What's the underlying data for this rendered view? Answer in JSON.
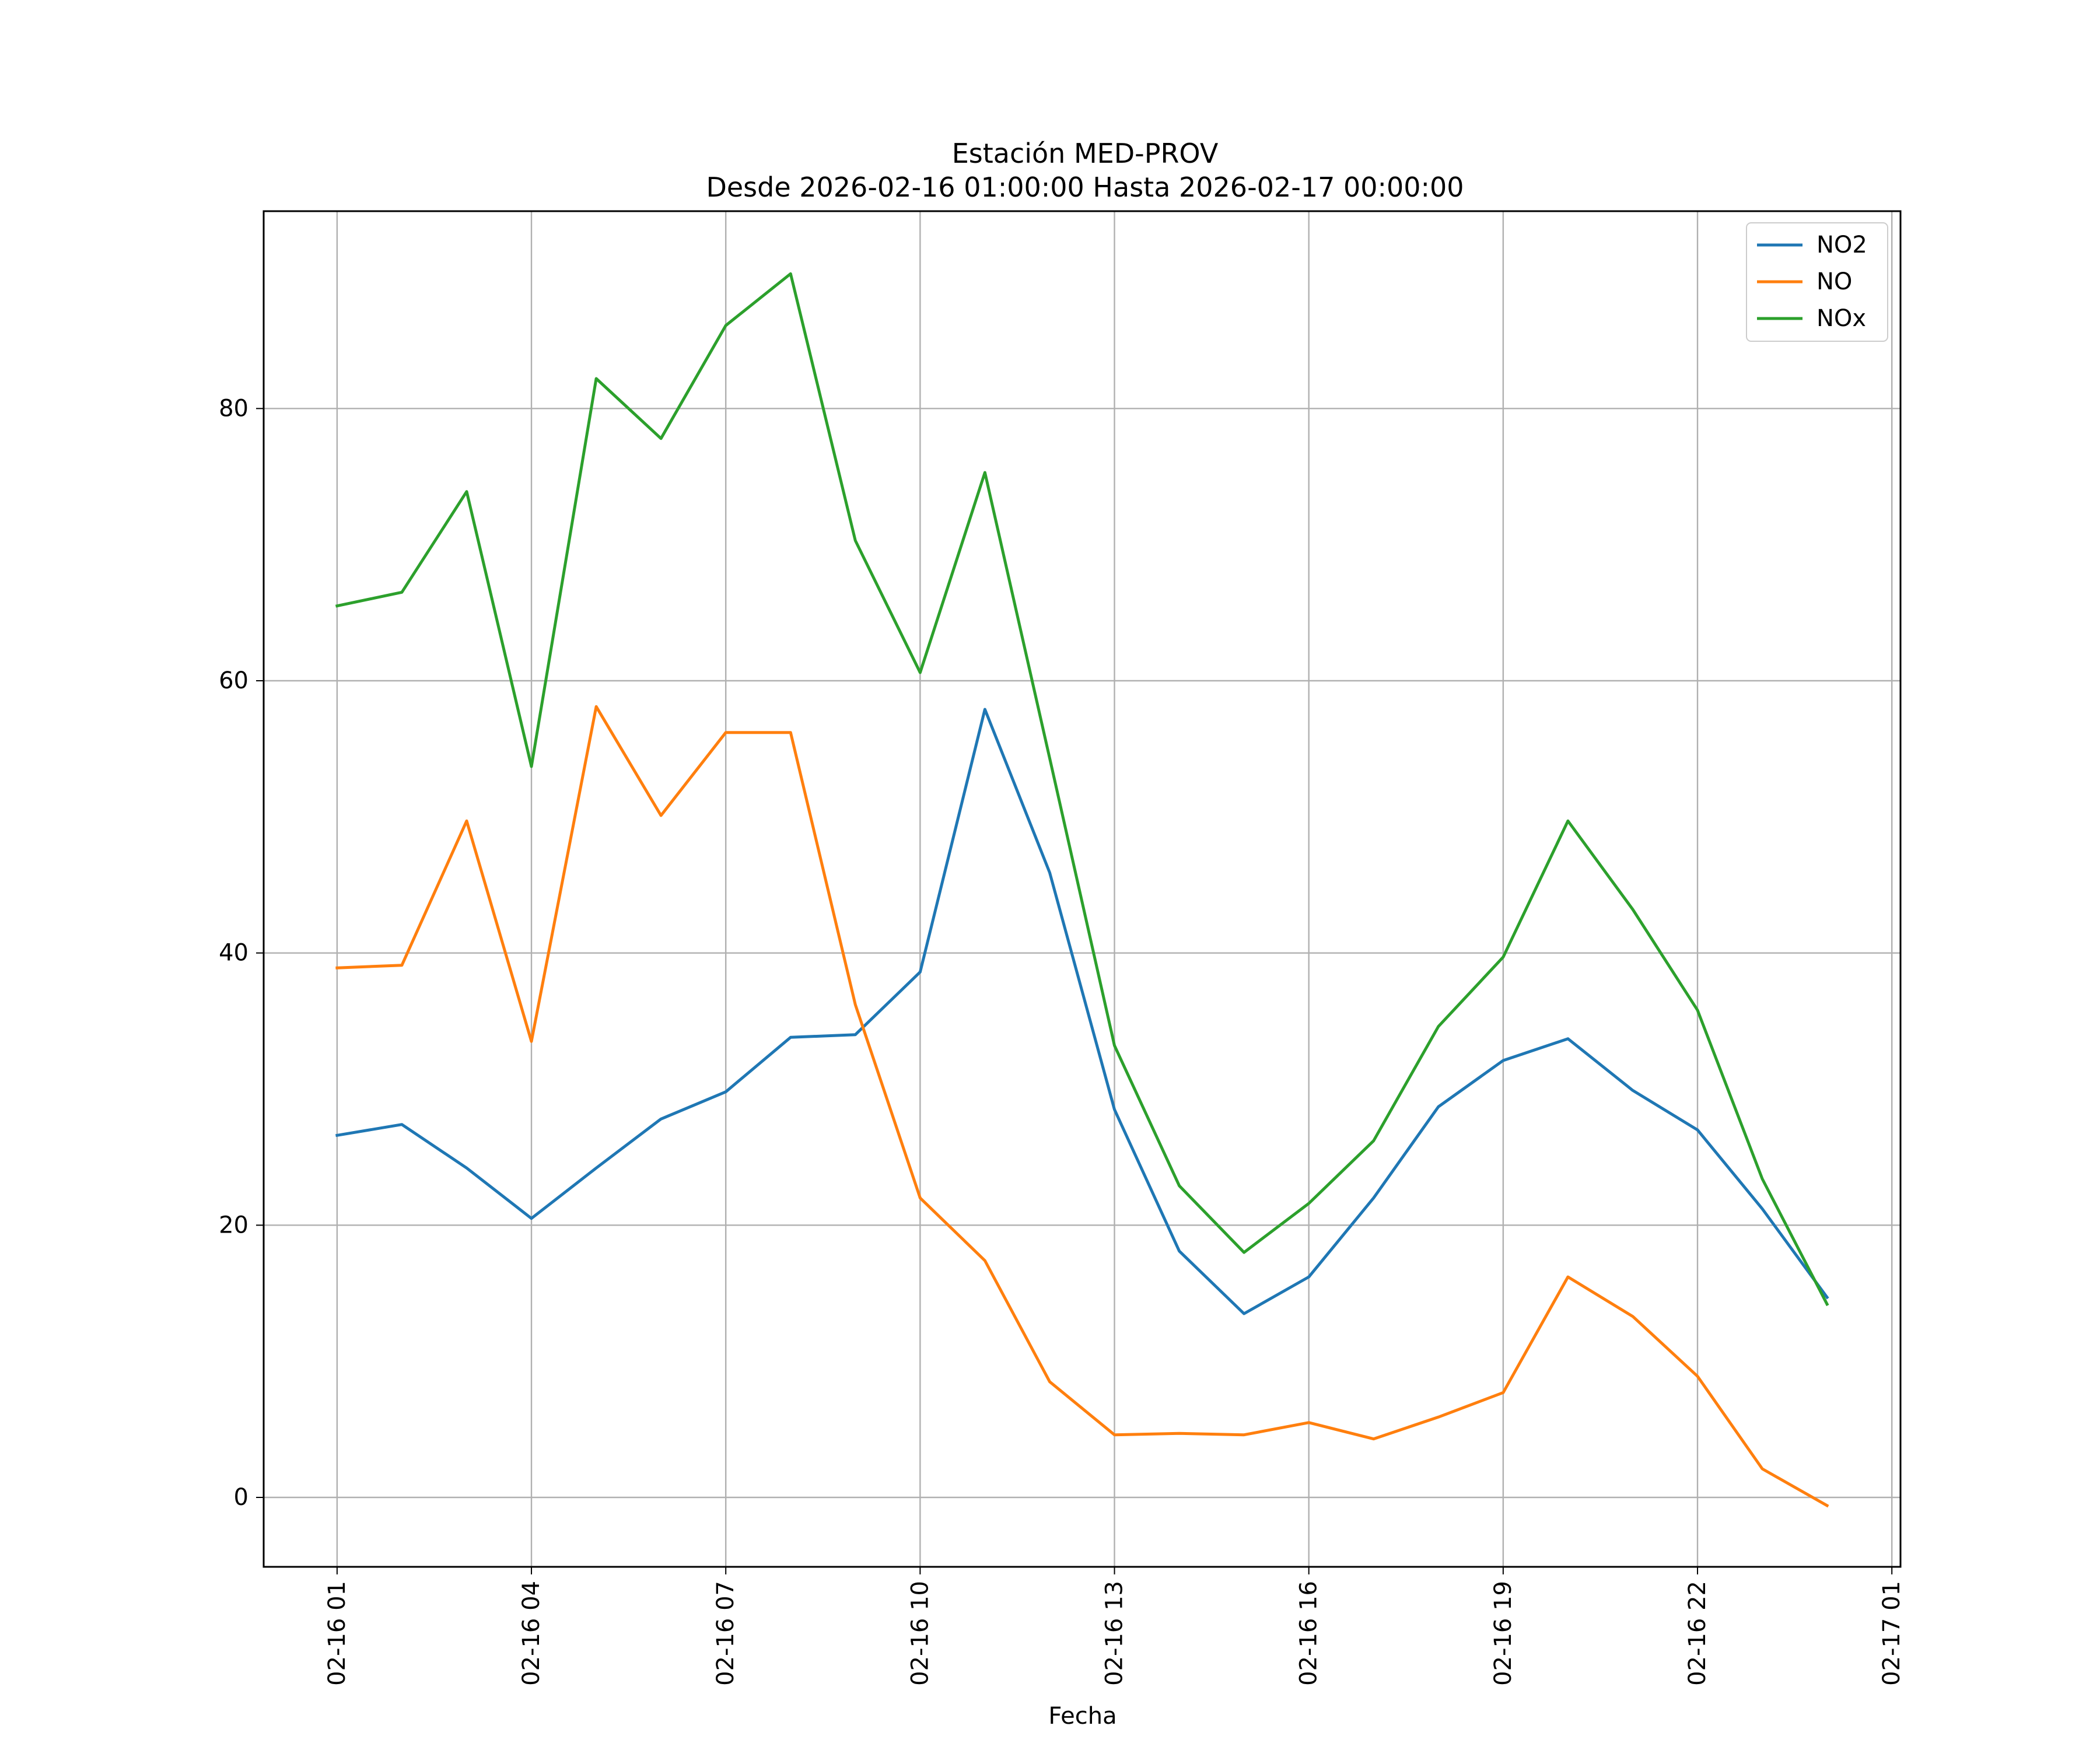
{
  "chart_data": {
    "type": "line",
    "title": "Estación MED-PROV",
    "subtitle": "Desde 2026-02-16 01:00:00 Hasta 2026-02-17 00:00:00",
    "xlabel": "Fecha",
    "ylabel": "",
    "x": [
      "2026-02-16 01:00",
      "2026-02-16 02:00",
      "2026-02-16 03:00",
      "2026-02-16 04:00",
      "2026-02-16 05:00",
      "2026-02-16 06:00",
      "2026-02-16 07:00",
      "2026-02-16 08:00",
      "2026-02-16 09:00",
      "2026-02-16 10:00",
      "2026-02-16 11:00",
      "2026-02-16 12:00",
      "2026-02-16 13:00",
      "2026-02-16 14:00",
      "2026-02-16 15:00",
      "2026-02-16 16:00",
      "2026-02-16 17:00",
      "2026-02-16 18:00",
      "2026-02-16 19:00",
      "2026-02-16 20:00",
      "2026-02-16 21:00",
      "2026-02-16 22:00",
      "2026-02-16 23:00",
      "2026-02-17 00:00"
    ],
    "xlim": [
      "2026-02-15 23:52",
      "2026-02-17 01:08"
    ],
    "xticks": [
      {
        "value": "2026-02-16 01:00",
        "label": "02-16 01"
      },
      {
        "value": "2026-02-16 04:00",
        "label": "02-16 04"
      },
      {
        "value": "2026-02-16 07:00",
        "label": "02-16 07"
      },
      {
        "value": "2026-02-16 10:00",
        "label": "02-16 10"
      },
      {
        "value": "2026-02-16 13:00",
        "label": "02-16 13"
      },
      {
        "value": "2026-02-16 16:00",
        "label": "02-16 16"
      },
      {
        "value": "2026-02-16 19:00",
        "label": "02-16 19"
      },
      {
        "value": "2026-02-16 22:00",
        "label": "02-16 22"
      },
      {
        "value": "2026-02-17 01:00",
        "label": "02-17 01"
      }
    ],
    "ylim": [
      -5.1,
      94.5
    ],
    "yticks": [
      {
        "value": 0,
        "label": "0"
      },
      {
        "value": 20,
        "label": "20"
      },
      {
        "value": 40,
        "label": "40"
      },
      {
        "value": 60,
        "label": "60"
      },
      {
        "value": 80,
        "label": "80"
      }
    ],
    "grid": true,
    "legend": "top-right",
    "series": [
      {
        "name": "NO2",
        "color": "#1f77b4",
        "values": [
          26.6,
          27.4,
          24.2,
          20.5,
          24.2,
          27.8,
          29.8,
          33.8,
          34.0,
          38.6,
          57.9,
          45.9,
          28.5,
          18.1,
          13.5,
          16.2,
          22.0,
          28.7,
          32.1,
          33.7,
          29.9,
          27.0,
          21.2,
          14.7
        ]
      },
      {
        "name": "NO",
        "color": "#ff7f0e",
        "values": [
          38.9,
          39.1,
          49.7,
          33.5,
          58.1,
          50.1,
          56.2,
          56.2,
          36.2,
          22.0,
          17.4,
          8.5,
          4.6,
          4.7,
          4.6,
          5.5,
          4.3,
          5.9,
          7.7,
          16.2,
          13.3,
          8.9,
          2.1,
          -0.6
        ]
      },
      {
        "name": "NOx",
        "color": "#2ca02c",
        "values": [
          65.5,
          66.5,
          73.9,
          53.7,
          82.2,
          77.8,
          86.1,
          89.9,
          70.3,
          60.6,
          75.3,
          54.3,
          33.2,
          22.9,
          18.0,
          21.6,
          26.2,
          34.6,
          39.7,
          49.7,
          43.2,
          35.8,
          23.4,
          14.2
        ]
      }
    ]
  }
}
